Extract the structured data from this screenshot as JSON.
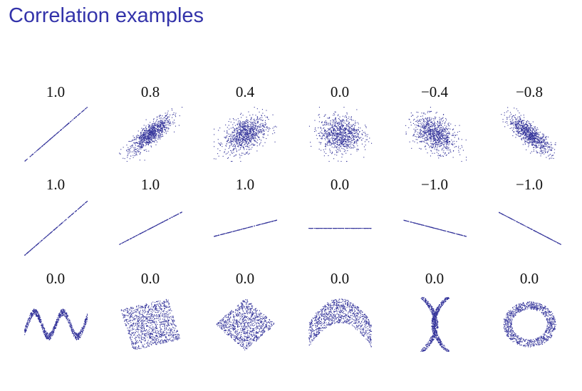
{
  "page_title": "Correlation examples",
  "colors": {
    "title": "#3333aa",
    "points": "#33339a",
    "labels": "#111111"
  },
  "chart_data": {
    "type": "scatter",
    "title": "Correlation examples",
    "grid": false,
    "panels": [
      {
        "label": "1.0",
        "correlation": 1.0,
        "shape": "perfect-line",
        "slope": 1
      },
      {
        "label": "0.8",
        "correlation": 0.8,
        "shape": "gaussian-cloud"
      },
      {
        "label": "0.4",
        "correlation": 0.4,
        "shape": "gaussian-cloud"
      },
      {
        "label": "0.0",
        "correlation": 0.0,
        "shape": "gaussian-cloud"
      },
      {
        "label": "−0.4",
        "correlation": -0.4,
        "shape": "gaussian-cloud"
      },
      {
        "label": "−0.8",
        "correlation": -0.8,
        "shape": "gaussian-cloud"
      },
      {
        "label": "1.0",
        "correlation": 1.0,
        "shape": "perfect-line",
        "slope": 1
      },
      {
        "label": "1.0",
        "correlation": 1.0,
        "shape": "perfect-line",
        "slope": 0.6
      },
      {
        "label": "1.0",
        "correlation": 1.0,
        "shape": "perfect-line",
        "slope": 0.3
      },
      {
        "label": "0.0",
        "correlation": 0.0,
        "shape": "perfect-line",
        "slope": 0
      },
      {
        "label": "−1.0",
        "correlation": -1.0,
        "shape": "perfect-line",
        "slope": -0.3
      },
      {
        "label": "−1.0",
        "correlation": -1.0,
        "shape": "perfect-line",
        "slope": -0.6
      },
      {
        "label": "0.0",
        "correlation": 0.0,
        "shape": "wave"
      },
      {
        "label": "0.0",
        "correlation": 0.0,
        "shape": "rotated-square"
      },
      {
        "label": "0.0",
        "correlation": 0.0,
        "shape": "diamond"
      },
      {
        "label": "0.0",
        "correlation": 0.0,
        "shape": "parabola"
      },
      {
        "label": "0.0",
        "correlation": 0.0,
        "shape": "x-cross"
      },
      {
        "label": "0.0",
        "correlation": 0.0,
        "shape": "ring"
      }
    ]
  }
}
